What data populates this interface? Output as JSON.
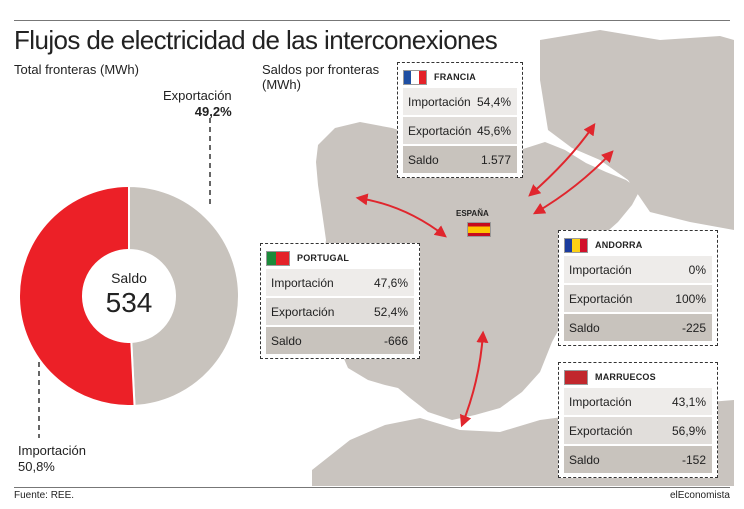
{
  "title": "Flujos de electricidad de las interconexiones",
  "left_subtitle": "Total fronteras (MWh)",
  "right_subtitle_line1": "Saldos por fronteras",
  "right_subtitle_line2": "(MWh)",
  "spain_label": "ESPAÑA",
  "source": "Fuente: REE.",
  "brand": "elEconomista",
  "colors": {
    "import": "#ec2027",
    "export": "#c8c3bd",
    "arrow": "#e0262d"
  },
  "chart_data": {
    "type": "pie",
    "title": "Total fronteras (MWh)",
    "slices": [
      {
        "label": "Exportación",
        "value": 49.2,
        "display": "49,2%"
      },
      {
        "label": "Importación",
        "value": 50.8,
        "display": "50,8%"
      }
    ],
    "center_label": "Saldo",
    "center_value": "534"
  },
  "borders": [
    {
      "id": "francia",
      "name": "FRANCIA",
      "flag": [
        "#1f4fa3",
        "#ffffff",
        "#e42229"
      ],
      "flag_dir": "v",
      "import": "54,4%",
      "export": "45,6%",
      "saldo": "1.577"
    },
    {
      "id": "portugal",
      "name": "PORTUGAL",
      "flag": [
        "#1b8a3a",
        "#1b8a3a",
        "#e42229",
        "#e42229",
        "#e42229"
      ],
      "flag_dir": "v",
      "import": "47,6%",
      "export": "52,4%",
      "saldo": "-666"
    },
    {
      "id": "andorra",
      "name": "ANDORRA",
      "flag": [
        "#1b3c9e",
        "#fcd116",
        "#d2102a"
      ],
      "flag_dir": "v",
      "import": "0%",
      "export": "100%",
      "saldo": "-225"
    },
    {
      "id": "marruecos",
      "name": "MARRUECOS",
      "flag": [
        "#c1272d"
      ],
      "flag_dir": "v",
      "import": "43,1%",
      "export": "56,9%",
      "saldo": "-152"
    }
  ],
  "row_labels": {
    "import": "Importación",
    "export": "Exportación",
    "saldo": "Saldo"
  }
}
